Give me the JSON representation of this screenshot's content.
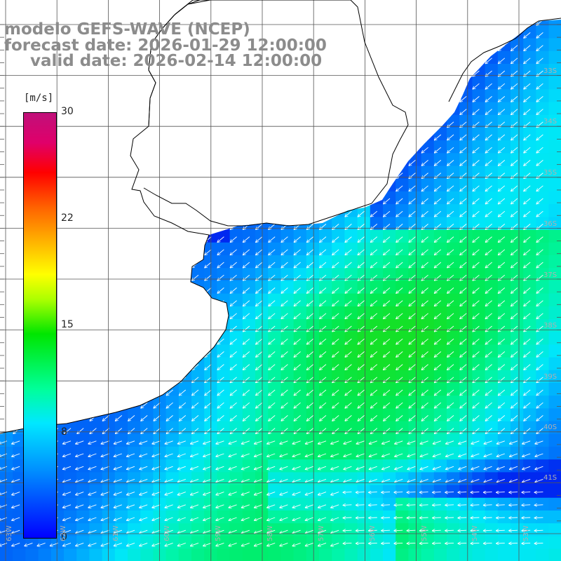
{
  "title": {
    "model": "modelo GEFS-WAVE (NCEP)",
    "forecast": "forecast date: 2026-01-29 12:00:00",
    "valid": "valid date: 2026-02-14 12:00:00"
  },
  "colorbar": {
    "unit": "[m/s]",
    "min": 0,
    "max": 30,
    "ticks": [
      "30",
      "22",
      "15",
      "8",
      "0"
    ],
    "tick_values": [
      30,
      22,
      15,
      8,
      0
    ]
  },
  "lat_labels": [
    "33S",
    "34S",
    "35S",
    "36S",
    "37S",
    "38S",
    "39S",
    "40S",
    "41S"
  ],
  "lon_labels": [
    "63W",
    "62W",
    "61W",
    "60W",
    "59W",
    "58W",
    "57W",
    "56W",
    "55W",
    "54W",
    "53W"
  ],
  "colors": {
    "land": "#ffffff",
    "coast": "#000000",
    "grid": "#555555",
    "arrow": "#ffffff"
  }
}
